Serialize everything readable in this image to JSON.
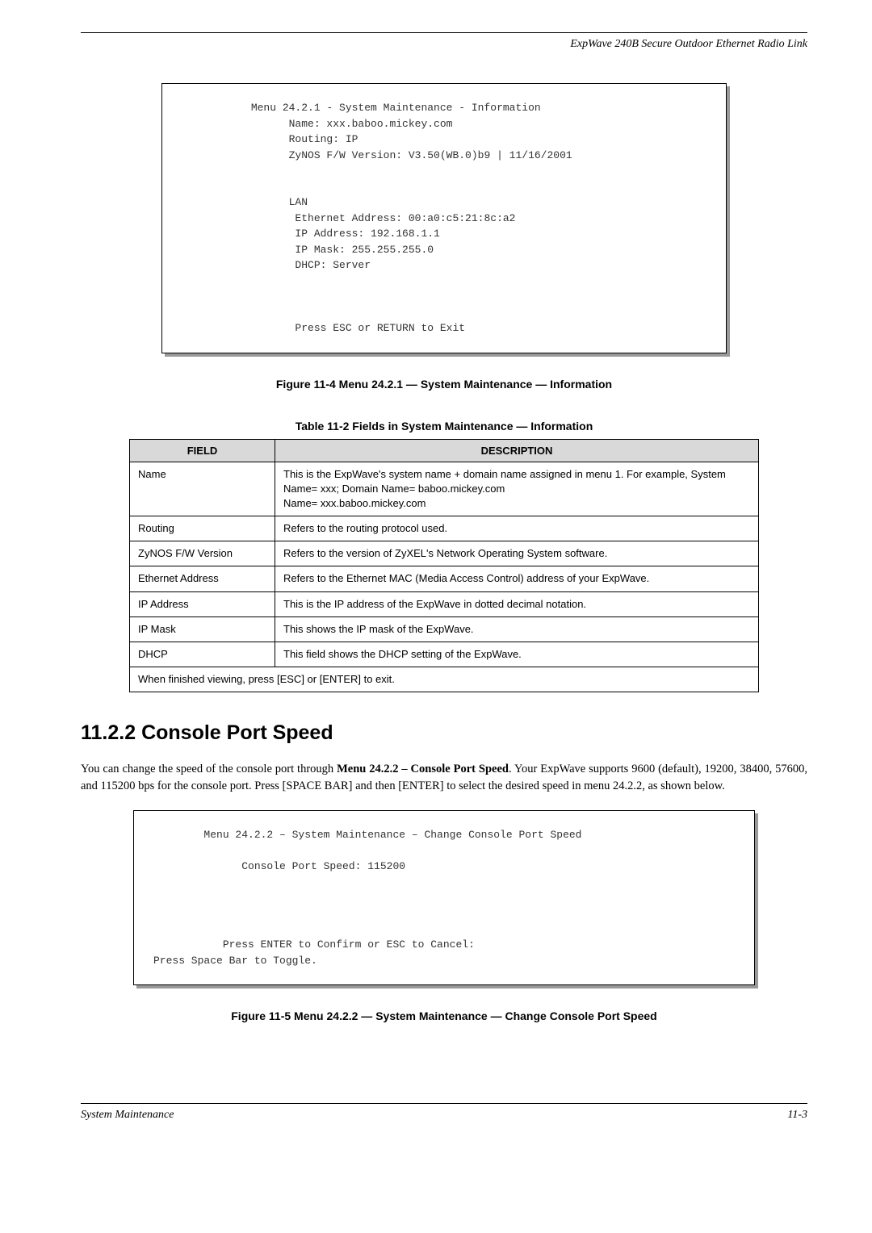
{
  "header": {
    "title": "ExpWave 240B Secure Outdoor Ethernet Radio Link"
  },
  "terminal1": {
    "text": "           Menu 24.2.1 - System Maintenance - Information\n                 Name: xxx.baboo.mickey.com\n                 Routing: IP\n                 ZyNOS F/W Version: V3.50(WB.0)b9 | 11/16/2001\n\n\n                 LAN\n                  Ethernet Address: 00:a0:c5:21:8c:a2\n                  IP Address: 192.168.1.1\n                  IP Mask: 255.255.255.0\n                  DHCP: Server\n\n\n\n                  Press ESC or RETURN to Exit"
  },
  "fig1_caption": "Figure 11-4 Menu 24.2.1 — System Maintenance — Information",
  "table_caption": "Table 11-2 Fields in System Maintenance — Information",
  "table": {
    "headers": [
      "FIELD",
      "DESCRIPTION"
    ],
    "rows": [
      [
        "Name",
        "This is the ExpWave's system name + domain name assigned in menu 1. For example, System Name= xxx;   Domain Name= baboo.mickey.com\nName= xxx.baboo.mickey.com"
      ],
      [
        "Routing",
        "Refers to the routing protocol used."
      ],
      [
        "ZyNOS F/W Version",
        "Refers to the version of ZyXEL's Network Operating System software."
      ],
      [
        "Ethernet Address",
        "Refers to the Ethernet MAC (Media Access Control) address of your ExpWave."
      ],
      [
        "IP Address",
        "This is the IP address of the ExpWave in dotted decimal notation."
      ],
      [
        "IP Mask",
        "This shows the IP mask of the ExpWave."
      ],
      [
        "DHCP",
        "This field shows the DHCP setting of the ExpWave."
      ]
    ],
    "footer_row": "When finished viewing, press [ESC] or [ENTER] to exit."
  },
  "section": {
    "heading": "11.2.2 Console Port Speed",
    "para": "You can change the speed of the console port through Menu 24.2.2 – Console Port Speed. Your ExpWave supports 9600 (default), 19200, 38400, 57600, and 115200 bps for the console port. Press [SPACE BAR] and then [ENTER] to select the desired speed in menu 24.2.2, as shown below."
  },
  "terminal2": {
    "text": "        Menu 24.2.2 – System Maintenance – Change Console Port Speed\n\n              Console Port Speed: 115200\n\n\n\n\n           Press ENTER to Confirm or ESC to Cancel:\nPress Space Bar to Toggle."
  },
  "fig2_caption": "Figure 11-5 Menu 24.2.2 — System Maintenance — Change Console Port Speed",
  "footer": {
    "left": "System Maintenance",
    "right": "11-3"
  }
}
